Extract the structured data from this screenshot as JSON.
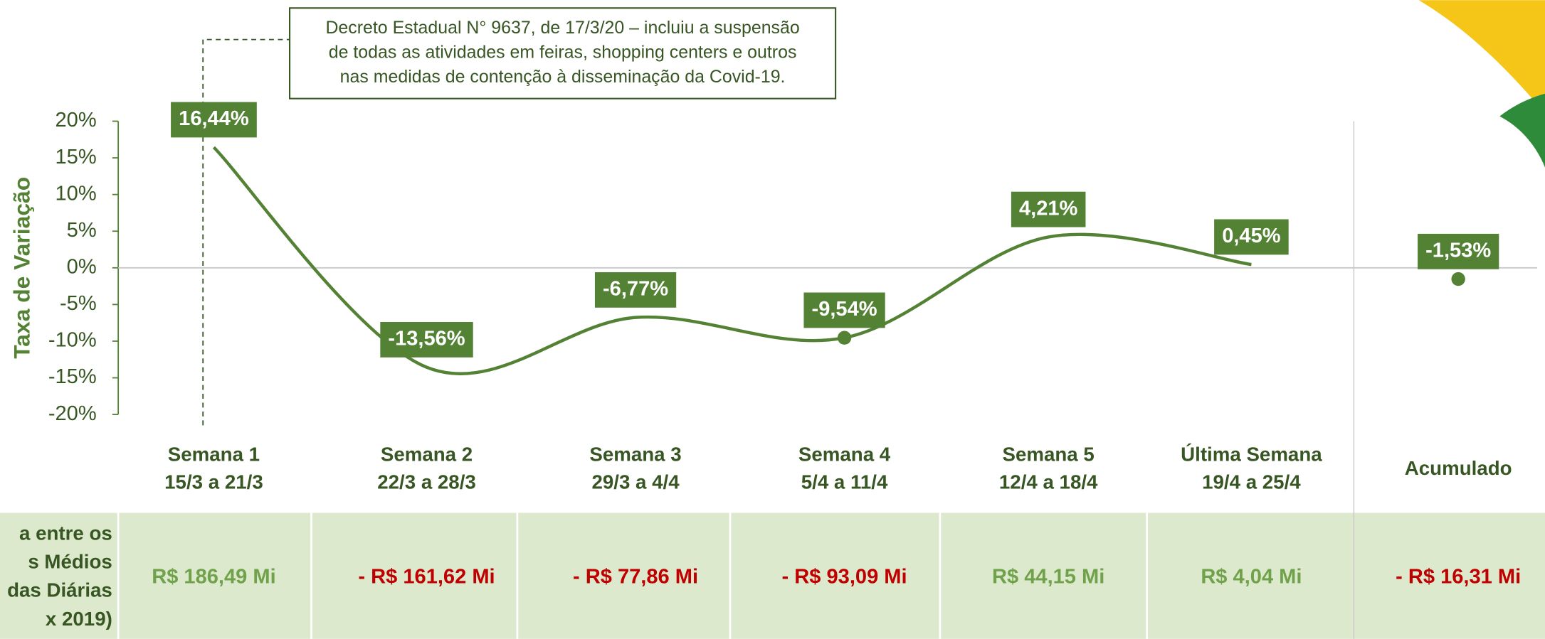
{
  "chart_data": {
    "type": "line",
    "y_label": "Taxa de Variação",
    "annotation": [
      "Decreto Estadual N° 9637, de 17/3/20 – incluiu a suspensão",
      "de todas as atividades em feiras, shopping centers e outros",
      "nas medidas de contenção à disseminação da Covid-19."
    ],
    "categories": [
      "Semana 1",
      "Semana 2",
      "Semana 3",
      "Semana 4",
      "Semana 5",
      "Última Semana",
      "Acumulado"
    ],
    "category_dates": [
      "15/3 a 21/3",
      "22/3 a 28/3",
      "29/3 a 4/4",
      "5/4 a 11/4",
      "12/4 a 18/4",
      "19/4 a 25/4",
      null
    ],
    "series": [
      {
        "style": "line",
        "color": "#548235",
        "values": [
          16.44,
          -13.56,
          -6.77,
          -9.54,
          4.21,
          0.45,
          null
        ],
        "value_labels": [
          "16,44%",
          "-13,56%",
          "-6,77%",
          "-9,54%",
          "4,21%",
          "0,45%",
          null
        ]
      },
      {
        "style": "points",
        "color": "#548235",
        "values": [
          null,
          null,
          null,
          null,
          null,
          null,
          -1.53
        ],
        "value_labels": [
          null,
          null,
          null,
          null,
          null,
          null,
          "-1,53%"
        ]
      }
    ],
    "ylim": [
      -20,
      20
    ],
    "yticks": [
      {
        "value": 20,
        "label": "20%"
      },
      {
        "value": 15,
        "label": "15%"
      },
      {
        "value": 10,
        "label": "10%"
      },
      {
        "value": 5,
        "label": "5%"
      },
      {
        "value": 0,
        "label": "0%"
      },
      {
        "value": -5,
        "label": "-5%"
      },
      {
        "value": -10,
        "label": "-10%"
      },
      {
        "value": -15,
        "label": "-15%"
      },
      {
        "value": -20,
        "label": "-20%"
      }
    ],
    "zero_line": true
  },
  "table": {
    "row_header": [
      "a entre os",
      "s Médios",
      "das Diárias",
      "x 2019)"
    ],
    "cells": [
      {
        "text": "R$ 186,49 Mi",
        "color": "#70a14b"
      },
      {
        "text": "- R$ 161,62 Mi",
        "color": "#c00000"
      },
      {
        "text": "- R$ 77,86 Mi",
        "color": "#c00000"
      },
      {
        "text": "- R$ 93,09 Mi",
        "color": "#c00000"
      },
      {
        "text": "R$ 44,15 Mi",
        "color": "#70a14b"
      },
      {
        "text": "R$ 4,04 Mi",
        "color": "#70a14b"
      },
      {
        "text": "- R$ 16,31 Mi",
        "color": "#c00000"
      }
    ]
  }
}
